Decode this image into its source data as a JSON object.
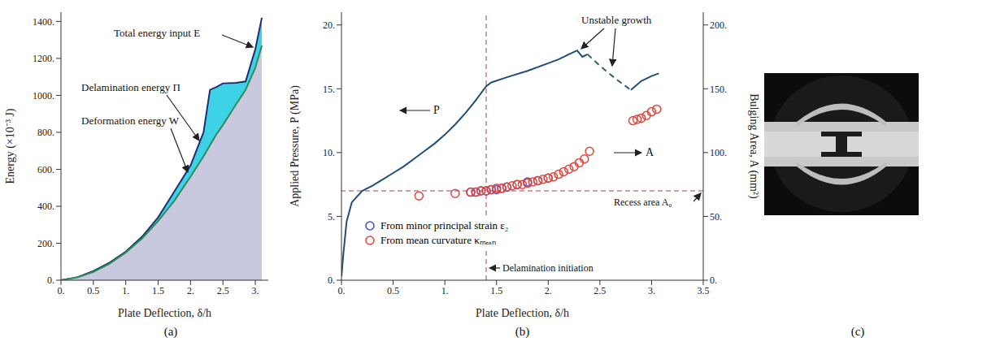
{
  "chart_data": [
    {
      "panel": "(a)",
      "type": "area",
      "x_label": "Plate Deflection, δ/h",
      "y_label": "Energy (×10⁻³ J)",
      "xlim": [
        0,
        3.2
      ],
      "xticks": [
        {
          "value": 0,
          "label": "0."
        },
        0.5,
        {
          "value": 1,
          "label": "1."
        },
        1.5,
        {
          "value": 2,
          "label": "2."
        },
        2.5,
        {
          "value": 3,
          "label": "3."
        }
      ],
      "ylim": [
        0,
        1450
      ],
      "yticks": [
        {
          "value": 0,
          "label": "0."
        },
        {
          "value": 200,
          "label": "200."
        },
        {
          "value": 400,
          "label": "400."
        },
        {
          "value": 600,
          "label": "600."
        },
        {
          "value": 800,
          "label": "800."
        },
        {
          "value": 1000,
          "label": "1000."
        },
        {
          "value": 1200,
          "label": "1200."
        },
        {
          "value": 1400,
          "label": "1400."
        }
      ],
      "x": [
        0,
        0.25,
        0.5,
        0.75,
        1,
        1.25,
        1.5,
        1.75,
        2,
        2.2,
        2.3,
        2.4,
        2.5,
        2.7,
        2.85,
        3.0,
        3.1
      ],
      "series": [
        {
          "name": "Total energy input E",
          "color": "#1f2f6e",
          "values": [
            0,
            16,
            50,
            95,
            155,
            235,
            340,
            480,
            620,
            800,
            1030,
            1045,
            1065,
            1068,
            1075,
            1250,
            1420
          ]
        },
        {
          "name": "Deformation energy W",
          "color": "#2e8b57",
          "values": [
            0,
            15,
            45,
            90,
            150,
            225,
            320,
            430,
            560,
            670,
            730,
            790,
            840,
            950,
            1030,
            1150,
            1270
          ]
        }
      ],
      "annotations": [
        {
          "text": "Delamination energy Π"
        }
      ]
    },
    {
      "panel": "(b)",
      "type": "line",
      "x_label": "Plate Deflection, δ/h",
      "y_label": "Applied Pressure, P (MPa)",
      "y2_label": "Bulging Area, A (mm²)",
      "xlim": [
        0,
        3.5
      ],
      "xticks": [
        {
          "value": 0,
          "label": "0."
        },
        0.5,
        {
          "value": 1,
          "label": "1."
        },
        1.5,
        {
          "value": 2,
          "label": "2."
        },
        2.5,
        {
          "value": 3,
          "label": "3."
        },
        3.5
      ],
      "ylim": [
        0,
        21
      ],
      "yticks": [
        {
          "value": 0,
          "label": "0."
        },
        {
          "value": 5,
          "label": "5."
        },
        {
          "value": 10,
          "label": "10."
        },
        {
          "value": 15,
          "label": "15."
        },
        {
          "value": 20,
          "label": "20."
        }
      ],
      "y2lim": [
        0,
        210
      ],
      "y2ticks": [
        {
          "value": 0,
          "label": "0."
        },
        {
          "value": 50,
          "label": "50."
        },
        {
          "value": 100,
          "label": "100."
        },
        {
          "value": 150,
          "label": "150."
        },
        {
          "value": 200,
          "label": "200."
        }
      ],
      "legend": "bottom-left",
      "series": [
        {
          "name": "P",
          "type": "line",
          "color": "#1f4e79",
          "x": [
            0,
            0.02,
            0.05,
            0.1,
            0.2,
            0.3,
            0.4,
            0.5,
            0.6,
            0.7,
            0.8,
            0.9,
            1.0,
            1.1,
            1.2,
            1.3,
            1.4,
            1.45,
            1.6,
            1.8,
            2.0,
            2.1,
            2.2,
            2.28,
            2.33,
            2.38,
            2.6,
            2.8,
            2.9,
            3.0,
            3.07
          ],
          "values": [
            0.3,
            2.2,
            4.6,
            6.1,
            7.0,
            7.4,
            7.9,
            8.4,
            8.9,
            9.5,
            10.1,
            10.7,
            11.4,
            12.2,
            13.1,
            14.1,
            15.2,
            15.5,
            15.9,
            16.4,
            17.0,
            17.3,
            17.7,
            18.0,
            17.5,
            17.7,
            null,
            14.9,
            15.6,
            16.0,
            16.2
          ]
        },
        {
          "type": "line",
          "line_style": "dashed",
          "color": "#2f5f6f",
          "x": [
            2.38,
            2.5,
            2.65,
            2.8
          ],
          "values": [
            17.7,
            16.8,
            15.8,
            14.9
          ]
        },
        {
          "name": "From minor principal strain ε₂",
          "type": "scatter",
          "marker": "circle",
          "color": "#3a4fd0",
          "axis": "y2",
          "x": [
            1.25,
            1.3,
            1.35,
            1.4,
            1.45,
            1.5,
            1.55,
            1.6,
            1.7,
            1.8,
            1.9,
            2.0
          ],
          "values": [
            69,
            69,
            70,
            70,
            71,
            71,
            72,
            73,
            75,
            77,
            78,
            80
          ]
        },
        {
          "name": "From mean curvature κₘₑₐₙ",
          "type": "scatter",
          "marker": "circle",
          "color": "#e0453a",
          "axis": "y2",
          "x": [
            0.75,
            1.1,
            1.25,
            1.3,
            1.35,
            1.4,
            1.45,
            1.5,
            1.55,
            1.6,
            1.65,
            1.7,
            1.75,
            1.8,
            1.85,
            1.9,
            1.95,
            2.0,
            2.05,
            2.1,
            2.15,
            2.2,
            2.25,
            2.3,
            2.35,
            2.4,
            2.82,
            2.86,
            2.9,
            2.95,
            3.0,
            3.05
          ],
          "values": [
            66,
            68,
            69,
            69,
            70,
            70,
            71,
            72,
            72,
            73,
            74,
            75,
            75,
            76,
            77,
            78,
            79,
            80,
            81,
            83,
            85,
            87,
            89,
            92,
            95,
            101,
            125,
            126,
            127,
            129,
            132,
            134
          ]
        }
      ],
      "annotations": [
        {
          "text": "Unstable growth"
        },
        {
          "text": "A"
        }
      ],
      "reference_lines": [
        {
          "x": 1.4,
          "label": "Delamination initiation"
        },
        {
          "y2": 70,
          "label": "Recess area A₀"
        }
      ]
    }
  ],
  "image": {
    "panel": "(c)"
  }
}
